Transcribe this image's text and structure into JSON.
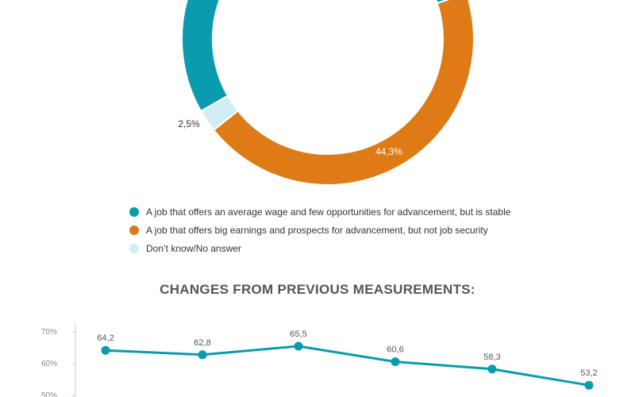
{
  "colors": {
    "teal": "#0B9BAE",
    "orange": "#DE7B16",
    "light_blue": "#D2EDF3",
    "title_gray": "#555555"
  },
  "chart_data": [
    {
      "type": "pie",
      "variant": "donut",
      "slices": [
        {
          "label": "A job that offers an average wage and few opportunities for advancement, but is stable",
          "value": 53.2,
          "color": "#0B9BAE",
          "data_label": ""
        },
        {
          "label": "A job that offers big earnings and prospects for advancement, but not job security",
          "value": 44.3,
          "color": "#DE7B16",
          "data_label": "44,3%"
        },
        {
          "label": "Don’t know/No answer",
          "value": 2.5,
          "color": "#D2EDF3",
          "data_label": "2,5%"
        }
      ],
      "legend": {
        "placement": "bottom",
        "items": [
          {
            "label": "A job that offers an average wage and few opportunities for advancement, but is stable",
            "color": "#0B9BAE"
          },
          {
            "label": "A job that offers big earnings and prospects for advancement, but not job security",
            "color": "#DE7B16"
          },
          {
            "label": "Don’t know/No answer",
            "color": "#D2EDF3"
          }
        ]
      }
    },
    {
      "type": "line",
      "title": "CHANGES FROM PREVIOUS MEASUREMENTS:",
      "y_ticks": [
        "70%",
        "60%",
        "50%"
      ],
      "ylim": [
        50,
        70
      ],
      "series": [
        {
          "values": [
            64.2,
            62.8,
            65.5,
            60.6,
            58.3,
            53.2
          ],
          "labels": [
            "64,2",
            "62,8",
            "65,5",
            "60,6",
            "58,3",
            "53,2"
          ],
          "color": "#0B9BAE"
        }
      ]
    }
  ]
}
